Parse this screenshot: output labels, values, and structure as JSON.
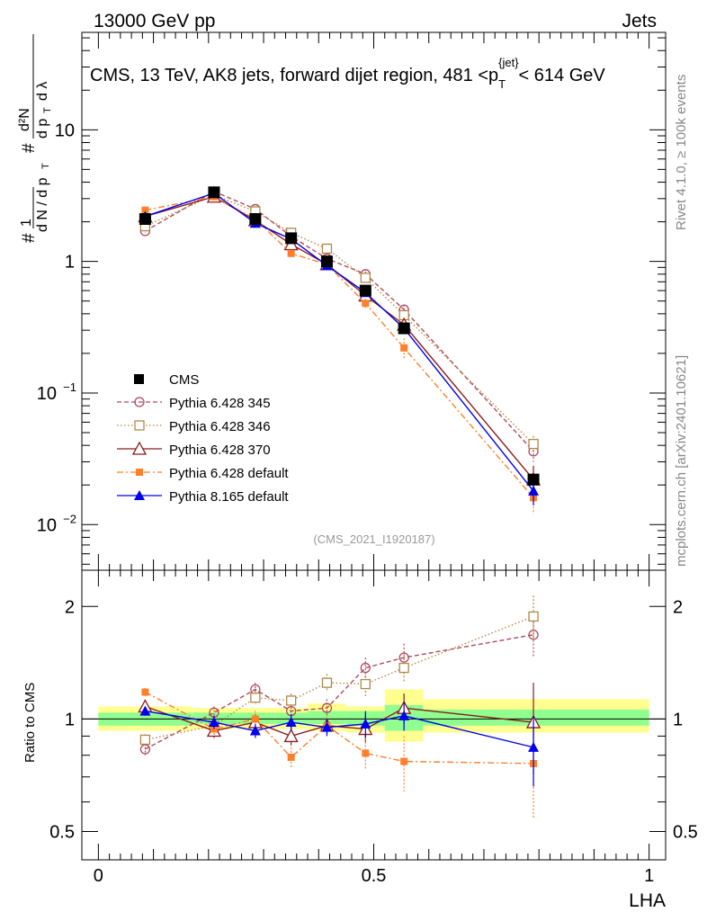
{
  "header": {
    "left": "13000 GeV pp",
    "right": "Jets",
    "title": "CMS, 13 TeV, AK8 jets, forward dijet region, 481 <p_T^{jet}< 614 GeV",
    "title_main": "CMS, 13 TeV, AK8 jets, forward dijet region, 481 <p",
    "title_sub": "T",
    "title_sup": "{jet}",
    "title_tail": "< 614 GeV",
    "watermark": "(CMS_2021_I1920187)",
    "side_rivet": "Rivet 4.1.0, ≥ 100k events",
    "side_mcplots": "mcplots.cern.ch [arXiv:2401.10621]"
  },
  "colors": {
    "CMS": "#000000",
    "p345": "#b0485e",
    "p346": "#b08848",
    "p370": "#8b1a1a",
    "pdef": "#ff7f2a",
    "p8": "#0000ee",
    "band_green": "#90ff90",
    "band_yellow": "#ffff90"
  },
  "chart_data": [
    {
      "type": "line",
      "panel": "main",
      "yscale": "log",
      "ylabel": "# 1/dN/dp_T # d^2N/dp_T dλ",
      "xlim": [
        -0.03,
        1.03
      ],
      "ylim": [
        0.0045,
        55
      ],
      "yticks": [
        {
          "v": 0.01,
          "t": "10",
          "e": "−2"
        },
        {
          "v": 0.1,
          "t": "10",
          "e": "−1"
        },
        {
          "v": 1,
          "t": "1",
          "e": ""
        },
        {
          "v": 10,
          "t": "10",
          "e": ""
        }
      ],
      "x": [
        0.085,
        0.21,
        0.285,
        0.35,
        0.415,
        0.485,
        0.555,
        0.79
      ],
      "series": [
        {
          "key": "CMS",
          "name": "CMS",
          "values": [
            2.1,
            3.35,
            2.1,
            1.5,
            1.0,
            0.6,
            0.31,
            0.022
          ],
          "errors": [
            0.1,
            0.13,
            0.08,
            0.06,
            0.05,
            0.03,
            0.02,
            0.002
          ]
        },
        {
          "key": "p345",
          "name": "Pythia 6.428 345",
          "values": [
            1.7,
            3.4,
            2.5,
            1.55,
            1.05,
            0.8,
            0.43,
            0.036
          ],
          "errors": [
            0.06,
            0.12,
            0.1,
            0.06,
            0.05,
            0.04,
            0.04,
            0.006
          ]
        },
        {
          "key": "p346",
          "name": "Pythia 6.428 346",
          "values": [
            1.85,
            3.2,
            2.4,
            1.65,
            1.25,
            0.75,
            0.39,
            0.041
          ],
          "errors": [
            0.06,
            0.12,
            0.1,
            0.06,
            0.06,
            0.04,
            0.04,
            0.006
          ]
        },
        {
          "key": "p370",
          "name": "Pythia 6.428 370",
          "values": [
            2.2,
            3.1,
            2.05,
            1.35,
            0.95,
            0.55,
            0.33,
            0.022
          ],
          "errors": [
            0.07,
            0.12,
            0.08,
            0.06,
            0.05,
            0.03,
            0.03,
            0.006
          ]
        },
        {
          "key": "pdef",
          "name": "Pythia 6.428 default",
          "values": [
            2.45,
            3.1,
            2.1,
            1.15,
            0.95,
            0.48,
            0.22,
            0.016
          ],
          "errors": [
            0.08,
            0.12,
            0.08,
            0.06,
            0.05,
            0.04,
            0.04,
            0.004
          ]
        },
        {
          "key": "p8",
          "name": "Pythia 8.165 default",
          "values": [
            2.2,
            3.3,
            1.95,
            1.48,
            0.93,
            0.58,
            0.31,
            0.018
          ],
          "errors": [
            0.07,
            0.12,
            0.08,
            0.06,
            0.05,
            0.04,
            0.03,
            0.004
          ]
        }
      ]
    },
    {
      "type": "line",
      "panel": "ratio",
      "yscale": "log",
      "ylabel": "Ratio to CMS",
      "xlabel": "LHA",
      "xlim": [
        -0.03,
        1.03
      ],
      "ylim": [
        0.42,
        2.5
      ],
      "yticks": [
        {
          "v": 0.5,
          "t": "0.5"
        },
        {
          "v": 1,
          "t": "1"
        },
        {
          "v": 2,
          "t": "2"
        }
      ],
      "xticks": [
        {
          "v": 0,
          "t": "0"
        },
        {
          "v": 0.5,
          "t": "0.5"
        },
        {
          "v": 1,
          "t": "1"
        }
      ],
      "bands": [
        {
          "x0": 0.0,
          "x1": 0.17,
          "green": [
            0.96,
            1.04
          ],
          "yellow": [
            0.93,
            1.08
          ]
        },
        {
          "x0": 0.17,
          "x1": 0.25,
          "green": [
            0.97,
            1.04
          ],
          "yellow": [
            0.94,
            1.07
          ]
        },
        {
          "x0": 0.25,
          "x1": 0.32,
          "green": [
            0.97,
            1.04
          ],
          "yellow": [
            0.94,
            1.07
          ]
        },
        {
          "x0": 0.32,
          "x1": 0.38,
          "green": [
            0.97,
            1.04
          ],
          "yellow": [
            0.94,
            1.07
          ]
        },
        {
          "x0": 0.38,
          "x1": 0.45,
          "green": [
            0.97,
            1.05
          ],
          "yellow": [
            0.93,
            1.1
          ]
        },
        {
          "x0": 0.45,
          "x1": 0.52,
          "green": [
            0.96,
            1.05
          ],
          "yellow": [
            0.92,
            1.08
          ]
        },
        {
          "x0": 0.52,
          "x1": 0.59,
          "green": [
            0.93,
            1.09
          ],
          "yellow": [
            0.87,
            1.2
          ]
        },
        {
          "x0": 0.59,
          "x1": 1.0,
          "green": [
            0.96,
            1.06
          ],
          "yellow": [
            0.92,
            1.13
          ]
        }
      ],
      "series": [
        {
          "key": "p345",
          "values": [
            0.83,
            1.04,
            1.2,
            1.05,
            1.07,
            1.37,
            1.46,
            1.68
          ],
          "errors": [
            0.03,
            0.04,
            0.05,
            0.05,
            0.06,
            0.09,
            0.13,
            0.22
          ]
        },
        {
          "key": "p346",
          "values": [
            0.88,
            0.96,
            1.14,
            1.12,
            1.25,
            1.24,
            1.37,
            1.88
          ],
          "errors": [
            0.03,
            0.04,
            0.05,
            0.05,
            0.07,
            0.09,
            0.12,
            0.26
          ]
        },
        {
          "key": "p370",
          "values": [
            1.08,
            0.93,
            0.98,
            0.9,
            0.96,
            0.94,
            1.07,
            0.98
          ],
          "errors": [
            0.03,
            0.04,
            0.05,
            0.05,
            0.05,
            0.08,
            0.1,
            0.27
          ]
        },
        {
          "key": "pdef",
          "values": [
            1.18,
            0.94,
            1.0,
            0.79,
            0.96,
            0.81,
            0.77,
            0.76
          ],
          "errors": [
            0.03,
            0.04,
            0.05,
            0.05,
            0.05,
            0.08,
            0.13,
            0.22
          ]
        },
        {
          "key": "p8",
          "values": [
            1.05,
            0.98,
            0.93,
            0.98,
            0.95,
            0.97,
            1.02,
            0.84
          ],
          "errors": [
            0.03,
            0.04,
            0.04,
            0.05,
            0.05,
            0.08,
            0.09,
            0.18
          ]
        }
      ]
    }
  ]
}
